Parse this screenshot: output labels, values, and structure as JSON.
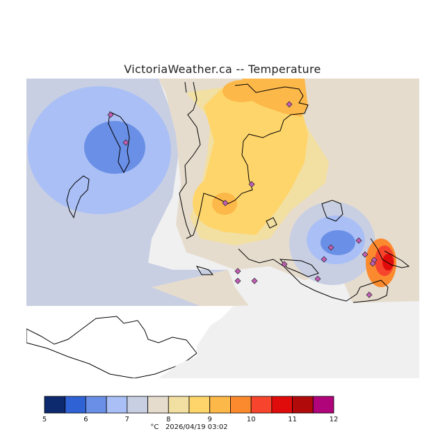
{
  "title": "VictoriaWeather.ca -- Temperature",
  "caption": {
    "unit": "°C",
    "timestamp": "2026/04/19 03:02"
  },
  "colorscale": {
    "ticks": [
      "5",
      "6",
      "7",
      "8",
      "9",
      "10",
      "11",
      "12"
    ],
    "colors": [
      "#0e2a6e",
      "#2f62d4",
      "#6a8fe6",
      "#a9bff5",
      "#c9cfe3",
      "#e6dccd",
      "#f2dfa2",
      "#fed56a",
      "#fdb84a",
      "#fb8a2f",
      "#f6452c",
      "#e00b0b",
      "#b10a0a",
      "#b0047a"
    ]
  },
  "stations_count_note": "",
  "colors": {
    "background_sea": "#f0f0f0",
    "land_white": "#ffffff",
    "coastline": "#000000"
  }
}
